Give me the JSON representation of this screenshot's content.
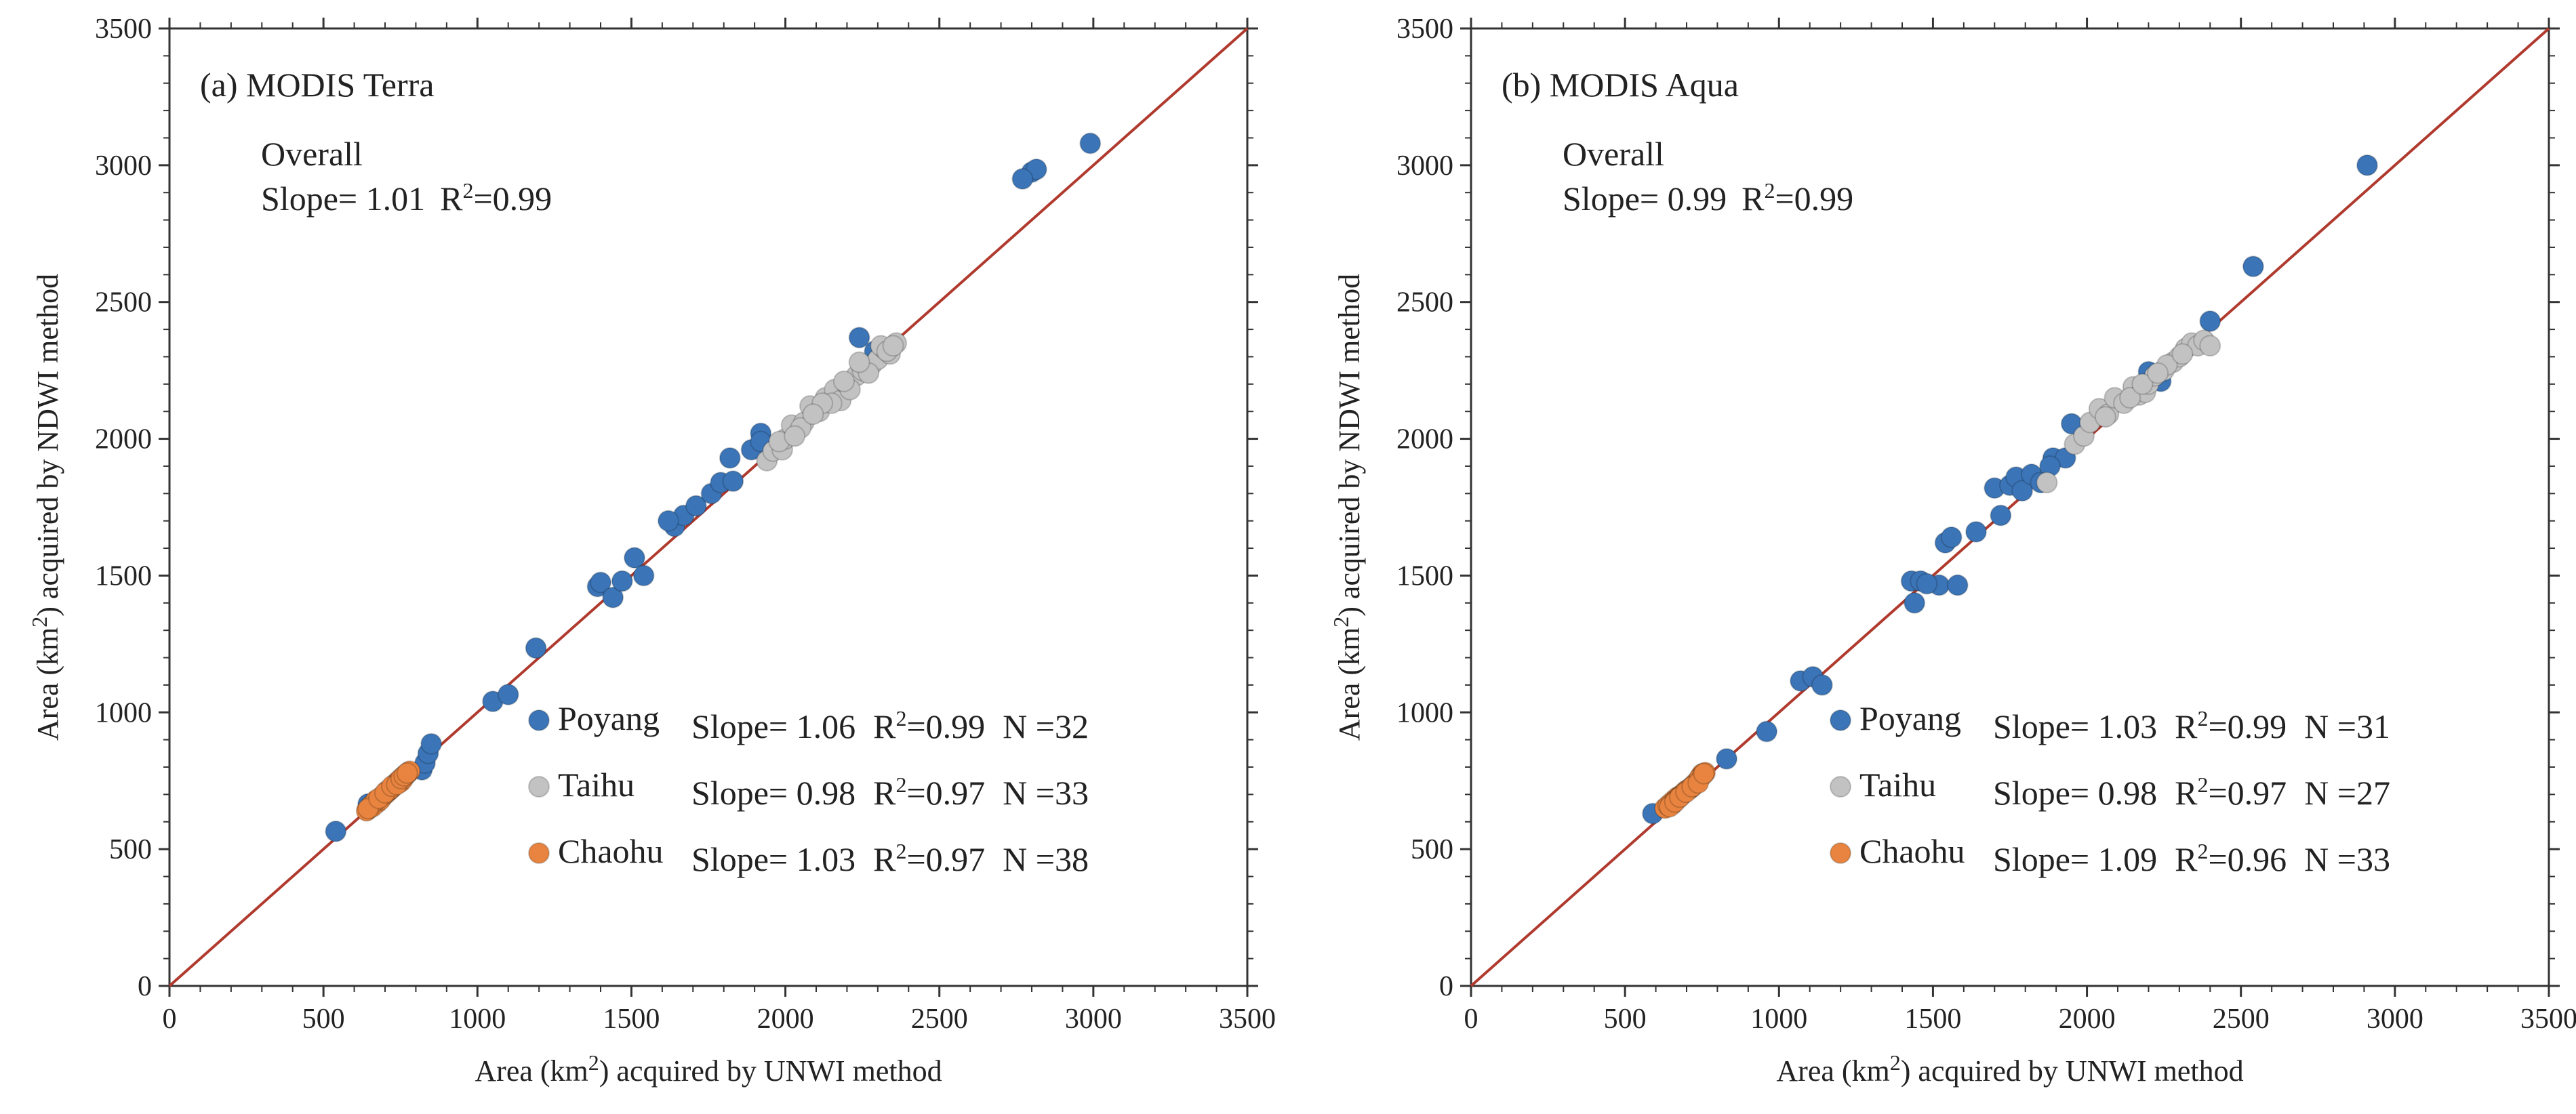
{
  "chart_data": [
    {
      "type": "scatter",
      "title": "(a) MODIS Terra",
      "xlabel_pre": "Area (km",
      "xlabel_sup": "2",
      "xlabel_post": ") acquired by UNWI method",
      "ylabel_pre": "Area (km",
      "ylabel_sup": "2",
      "ylabel_post": ") acquired by NDWI method",
      "xlim": [
        0,
        3500
      ],
      "ylim": [
        0,
        3500
      ],
      "ticks": [
        "0",
        "500",
        "1000",
        "1500",
        "2000",
        "2500",
        "3000",
        "3500"
      ],
      "overall_label": "Overall",
      "overall_stats": {
        "slope": "Slope= 1.01",
        "r2_pre": "R",
        "r2_sup": "2",
        "r2_post": "=0.99"
      },
      "reference_line": {
        "from": [
          0,
          0
        ],
        "to": [
          3500,
          3500
        ],
        "color": "#b03a2e"
      },
      "series": [
        {
          "name": "Poyang",
          "color": "#3b75b7",
          "stats": {
            "slope": "Slope= 1.06",
            "r2_pre": "R",
            "r2_sup": "2",
            "r2_post": "=0.99",
            "n": "N =32"
          },
          "points": [
            [
              540,
              565
            ],
            [
              645,
              665
            ],
            [
              820,
              790
            ],
            [
              830,
              815
            ],
            [
              840,
              850
            ],
            [
              850,
              885
            ],
            [
              1050,
              1040
            ],
            [
              1100,
              1065
            ],
            [
              1190,
              1235
            ],
            [
              1390,
              1460
            ],
            [
              1400,
              1475
            ],
            [
              1440,
              1420
            ],
            [
              1470,
              1480
            ],
            [
              1510,
              1565
            ],
            [
              1540,
              1500
            ],
            [
              1640,
              1680
            ],
            [
              1670,
              1720
            ],
            [
              1710,
              1755
            ],
            [
              1760,
              1800
            ],
            [
              1790,
              1840
            ],
            [
              1820,
              1930
            ],
            [
              1830,
              1845
            ],
            [
              1890,
              1960
            ],
            [
              1920,
              2020
            ],
            [
              2240,
              2370
            ],
            [
              2290,
              2320
            ],
            [
              2800,
              2975
            ],
            [
              2815,
              2985
            ],
            [
              2990,
              3080
            ],
            [
              2770,
              2950
            ],
            [
              1620,
              1700
            ],
            [
              1920,
              1990
            ]
          ]
        },
        {
          "name": "Taihu",
          "color": "#c2c2c2",
          "stats": {
            "slope": "Slope= 0.98",
            "r2_pre": "R",
            "r2_sup": "2",
            "r2_post": "=0.97",
            "n": "N =33"
          },
          "points": [
            [
              1940,
              1920
            ],
            [
              1960,
              1955
            ],
            [
              1990,
              1960
            ],
            [
              2000,
              2000
            ],
            [
              2020,
              2050
            ],
            [
              2060,
              2060
            ],
            [
              2080,
              2120
            ],
            [
              2110,
              2100
            ],
            [
              2130,
              2150
            ],
            [
              2160,
              2180
            ],
            [
              2180,
              2140
            ],
            [
              2200,
              2200
            ],
            [
              2230,
              2230
            ],
            [
              2260,
              2260
            ],
            [
              2280,
              2270
            ],
            [
              2300,
              2290
            ],
            [
              2320,
              2330
            ],
            [
              2340,
              2310
            ],
            [
              2360,
              2350
            ],
            [
              2050,
              2040
            ],
            [
              2150,
              2130
            ],
            [
              2250,
              2250
            ],
            [
              2310,
              2340
            ],
            [
              2330,
              2320
            ],
            [
              2270,
              2240
            ],
            [
              2210,
              2180
            ],
            [
              2120,
              2130
            ],
            [
              1980,
              1990
            ],
            [
              2350,
              2340
            ],
            [
              2240,
              2280
            ],
            [
              2190,
              2210
            ],
            [
              2090,
              2090
            ],
            [
              2030,
              2010
            ]
          ]
        },
        {
          "name": "Chaohu",
          "color": "#e8843f",
          "stats": {
            "slope": "Slope= 1.03",
            "r2_pre": "R",
            "r2_sup": "2",
            "r2_post": "=0.97",
            "n": "N =38"
          },
          "points": [
            [
              640,
              640
            ],
            [
              650,
              650
            ],
            [
              665,
              665
            ],
            [
              675,
              670
            ],
            [
              690,
              690
            ],
            [
              700,
              700
            ],
            [
              710,
              710
            ],
            [
              720,
              720
            ],
            [
              730,
              735
            ],
            [
              740,
              740
            ],
            [
              745,
              750
            ],
            [
              755,
              760
            ],
            [
              765,
              770
            ],
            [
              775,
              780
            ],
            [
              780,
              785
            ],
            [
              660,
              655
            ],
            [
              685,
              680
            ],
            [
              705,
              712
            ],
            [
              725,
              728
            ],
            [
              735,
              740
            ],
            [
              750,
              745
            ],
            [
              760,
              765
            ],
            [
              770,
              775
            ],
            [
              655,
              660
            ],
            [
              670,
              678
            ],
            [
              695,
              698
            ],
            [
              715,
              718
            ],
            [
              742,
              748
            ],
            [
              758,
              755
            ],
            [
              768,
              772
            ],
            [
              645,
              648
            ],
            [
              680,
              686
            ],
            [
              700,
              706
            ],
            [
              722,
              730
            ],
            [
              738,
              736
            ],
            [
              752,
              758
            ],
            [
              762,
              768
            ],
            [
              772,
              778
            ]
          ]
        }
      ]
    },
    {
      "type": "scatter",
      "title": "(b) MODIS Aqua",
      "xlabel_pre": "Area (km",
      "xlabel_sup": "2",
      "xlabel_post": ") acquired by UNWI method",
      "ylabel_pre": "Area (km",
      "ylabel_sup": "2",
      "ylabel_post": ") acquired by NDWI method",
      "xlim": [
        0,
        3500
      ],
      "ylim": [
        0,
        3500
      ],
      "ticks": [
        "0",
        "500",
        "1000",
        "1500",
        "2000",
        "2500",
        "3000",
        "3500"
      ],
      "overall_label": "Overall",
      "overall_stats": {
        "slope": "Slope= 0.99",
        "r2_pre": "R",
        "r2_sup": "2",
        "r2_post": "=0.99"
      },
      "reference_line": {
        "from": [
          0,
          0
        ],
        "to": [
          3500,
          3500
        ],
        "color": "#b03a2e"
      },
      "series": [
        {
          "name": "Poyang",
          "color": "#3b75b7",
          "stats": {
            "slope": "Slope= 1.03",
            "r2_pre": "R",
            "r2_sup": "2",
            "r2_post": "=0.99",
            "n": "N =31"
          },
          "points": [
            [
              590,
              630
            ],
            [
              830,
              830
            ],
            [
              960,
              930
            ],
            [
              1070,
              1115
            ],
            [
              1110,
              1130
            ],
            [
              1140,
              1100
            ],
            [
              1430,
              1480
            ],
            [
              1440,
              1400
            ],
            [
              1460,
              1480
            ],
            [
              1520,
              1465
            ],
            [
              1540,
              1620
            ],
            [
              1560,
              1640
            ],
            [
              1580,
              1465
            ],
            [
              1700,
              1820
            ],
            [
              1720,
              1720
            ],
            [
              1750,
              1830
            ],
            [
              1770,
              1860
            ],
            [
              1790,
              1810
            ],
            [
              1820,
              1870
            ],
            [
              1850,
              1840
            ],
            [
              1890,
              1930
            ],
            [
              1930,
              1930
            ],
            [
              1950,
              2055
            ],
            [
              2200,
              2245
            ],
            [
              2240,
              2210
            ],
            [
              2400,
              2430
            ],
            [
              2540,
              2630
            ],
            [
              2910,
              3000
            ],
            [
              1480,
              1470
            ],
            [
              1640,
              1660
            ],
            [
              1880,
              1900
            ]
          ]
        },
        {
          "name": "Taihu",
          "color": "#c2c2c2",
          "stats": {
            "slope": "Slope= 0.98",
            "r2_pre": "R",
            "r2_sup": "2",
            "r2_post": "=0.97",
            "n": "N =27"
          },
          "points": [
            [
              1870,
              1840
            ],
            [
              1960,
              1980
            ],
            [
              1990,
              2010
            ],
            [
              2010,
              2060
            ],
            [
              2040,
              2110
            ],
            [
              2070,
              2090
            ],
            [
              2090,
              2150
            ],
            [
              2120,
              2130
            ],
            [
              2150,
              2190
            ],
            [
              2170,
              2160
            ],
            [
              2190,
              2170
            ],
            [
              2200,
              2200
            ],
            [
              2220,
              2230
            ],
            [
              2250,
              2250
            ],
            [
              2280,
              2280
            ],
            [
              2300,
              2300
            ],
            [
              2320,
              2330
            ],
            [
              2340,
              2350
            ],
            [
              2360,
              2340
            ],
            [
              2380,
              2360
            ],
            [
              2400,
              2340
            ],
            [
              2140,
              2150
            ],
            [
              2260,
              2270
            ],
            [
              2310,
              2310
            ],
            [
              2060,
              2080
            ],
            [
              2180,
              2200
            ],
            [
              2230,
              2240
            ]
          ]
        },
        {
          "name": "Chaohu",
          "color": "#e8843f",
          "stats": {
            "slope": "Slope= 1.09",
            "r2_pre": "R",
            "r2_sup": "2",
            "r2_post": "=0.96",
            "n": "N =33"
          },
          "points": [
            [
              630,
              650
            ],
            [
              640,
              660
            ],
            [
              650,
              670
            ],
            [
              660,
              680
            ],
            [
              670,
              690
            ],
            [
              680,
              695
            ],
            [
              690,
              705
            ],
            [
              700,
              715
            ],
            [
              710,
              720
            ],
            [
              720,
              730
            ],
            [
              730,
              740
            ],
            [
              740,
              755
            ],
            [
              745,
              765
            ],
            [
              750,
              775
            ],
            [
              760,
              780
            ],
            [
              655,
              665
            ],
            [
              665,
              678
            ],
            [
              675,
              688
            ],
            [
              685,
              698
            ],
            [
              695,
              710
            ],
            [
              705,
              718
            ],
            [
              715,
              725
            ],
            [
              725,
              738
            ],
            [
              735,
              748
            ],
            [
              742,
              760
            ],
            [
              752,
              770
            ],
            [
              645,
              655
            ],
            [
              662,
              672
            ],
            [
              678,
              690
            ],
            [
              698,
              708
            ],
            [
              718,
              728
            ],
            [
              738,
              742
            ],
            [
              756,
              776
            ]
          ]
        }
      ]
    }
  ]
}
